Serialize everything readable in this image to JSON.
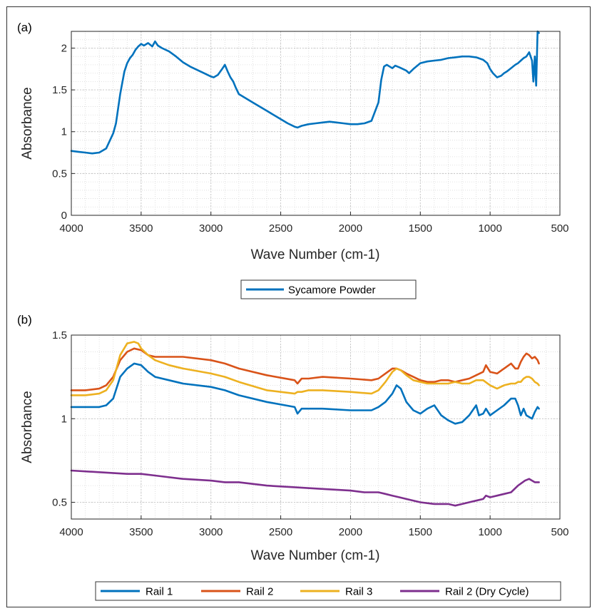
{
  "chart_data": [
    {
      "type": "line",
      "panel_label": "(a)",
      "xlabel": "Wave Number (cm-1)",
      "ylabel": "Absorbance",
      "xlim": [
        4000,
        500
      ],
      "x_reversed": true,
      "ylim": [
        0,
        2.2
      ],
      "xticks": [
        "4000",
        "3500",
        "3000",
        "2500",
        "2000",
        "1500",
        "1000",
        "500"
      ],
      "xtick_values": [
        4000,
        3500,
        3000,
        2500,
        2000,
        1500,
        1000,
        500
      ],
      "yticks": [
        "0",
        "0.5",
        "1",
        "1.5",
        "2"
      ],
      "ytick_values": [
        0,
        0.5,
        1,
        1.5,
        2
      ],
      "grid": true,
      "legend_position": "bottom-center, outside",
      "series": [
        {
          "name": "Sycamore Powder",
          "color": "#0072BD",
          "x": [
            4000,
            3950,
            3900,
            3850,
            3800,
            3750,
            3700,
            3680,
            3650,
            3620,
            3600,
            3580,
            3560,
            3540,
            3520,
            3500,
            3480,
            3450,
            3420,
            3400,
            3380,
            3350,
            3300,
            3250,
            3200,
            3150,
            3100,
            3050,
            3000,
            2980,
            2950,
            2920,
            2900,
            2880,
            2860,
            2840,
            2820,
            2800,
            2700,
            2600,
            2500,
            2450,
            2400,
            2380,
            2350,
            2300,
            2250,
            2200,
            2150,
            2100,
            2050,
            2000,
            1950,
            1900,
            1850,
            1800,
            1780,
            1760,
            1740,
            1720,
            1700,
            1680,
            1650,
            1600,
            1580,
            1550,
            1500,
            1450,
            1400,
            1350,
            1300,
            1250,
            1200,
            1150,
            1100,
            1050,
            1020,
            1000,
            980,
            950,
            920,
            900,
            880,
            850,
            820,
            800,
            780,
            760,
            740,
            720,
            700,
            690,
            680,
            670,
            660,
            650
          ],
          "y": [
            0.77,
            0.76,
            0.75,
            0.74,
            0.75,
            0.8,
            0.98,
            1.1,
            1.45,
            1.72,
            1.82,
            1.88,
            1.92,
            1.98,
            2.02,
            2.05,
            2.03,
            2.06,
            2.02,
            2.08,
            2.03,
            2.0,
            1.96,
            1.9,
            1.83,
            1.78,
            1.74,
            1.7,
            1.66,
            1.65,
            1.68,
            1.75,
            1.8,
            1.72,
            1.65,
            1.6,
            1.52,
            1.45,
            1.35,
            1.25,
            1.15,
            1.1,
            1.06,
            1.05,
            1.07,
            1.09,
            1.1,
            1.11,
            1.12,
            1.11,
            1.1,
            1.09,
            1.09,
            1.1,
            1.13,
            1.35,
            1.62,
            1.78,
            1.8,
            1.78,
            1.76,
            1.79,
            1.77,
            1.73,
            1.7,
            1.75,
            1.82,
            1.84,
            1.85,
            1.86,
            1.88,
            1.89,
            1.9,
            1.9,
            1.89,
            1.86,
            1.82,
            1.75,
            1.7,
            1.65,
            1.67,
            1.7,
            1.72,
            1.76,
            1.8,
            1.82,
            1.85,
            1.88,
            1.9,
            1.95,
            1.85,
            1.6,
            1.9,
            1.55,
            2.2,
            2.18
          ]
        }
      ]
    },
    {
      "type": "line",
      "panel_label": "(b)",
      "xlabel": "Wave Number (cm-1)",
      "ylabel": "Absorbance",
      "xlim": [
        4000,
        500
      ],
      "x_reversed": true,
      "ylim": [
        0.4,
        1.5
      ],
      "xticks": [
        "4000",
        "3500",
        "3000",
        "2500",
        "2000",
        "1500",
        "1000",
        "500"
      ],
      "xtick_values": [
        4000,
        3500,
        3000,
        2500,
        2000,
        1500,
        1000,
        500
      ],
      "yticks": [
        "0.5",
        "1",
        "1.5"
      ],
      "ytick_values": [
        0.5,
        1,
        1.5
      ],
      "grid": true,
      "legend_position": "bottom-center, outside, horizontal",
      "series": [
        {
          "name": "Rail 1",
          "color": "#0072BD",
          "x": [
            4000,
            3900,
            3800,
            3750,
            3700,
            3650,
            3600,
            3550,
            3500,
            3450,
            3400,
            3300,
            3200,
            3000,
            2900,
            2800,
            2600,
            2400,
            2380,
            2350,
            2300,
            2200,
            2000,
            1850,
            1800,
            1750,
            1700,
            1670,
            1640,
            1600,
            1550,
            1500,
            1450,
            1400,
            1350,
            1300,
            1250,
            1200,
            1150,
            1100,
            1080,
            1050,
            1030,
            1000,
            950,
            900,
            850,
            820,
            800,
            780,
            760,
            740,
            720,
            700,
            680,
            660,
            650
          ],
          "y": [
            1.07,
            1.07,
            1.07,
            1.08,
            1.12,
            1.25,
            1.3,
            1.33,
            1.32,
            1.28,
            1.25,
            1.23,
            1.21,
            1.19,
            1.17,
            1.14,
            1.1,
            1.07,
            1.03,
            1.06,
            1.06,
            1.06,
            1.05,
            1.05,
            1.07,
            1.1,
            1.15,
            1.2,
            1.18,
            1.1,
            1.05,
            1.03,
            1.06,
            1.08,
            1.02,
            0.99,
            0.97,
            0.98,
            1.02,
            1.08,
            1.02,
            1.03,
            1.06,
            1.02,
            1.05,
            1.08,
            1.12,
            1.12,
            1.08,
            1.02,
            1.06,
            1.02,
            1.01,
            1.0,
            1.04,
            1.07,
            1.06
          ]
        },
        {
          "name": "Rail 2",
          "color": "#D95319",
          "x": [
            4000,
            3900,
            3800,
            3750,
            3700,
            3650,
            3600,
            3550,
            3500,
            3450,
            3400,
            3300,
            3200,
            3000,
            2900,
            2800,
            2600,
            2400,
            2380,
            2350,
            2300,
            2200,
            2000,
            1850,
            1800,
            1750,
            1700,
            1670,
            1640,
            1600,
            1550,
            1500,
            1450,
            1400,
            1350,
            1300,
            1250,
            1200,
            1150,
            1100,
            1050,
            1030,
            1000,
            950,
            900,
            850,
            820,
            800,
            780,
            760,
            740,
            720,
            700,
            680,
            660,
            650
          ],
          "y": [
            1.17,
            1.17,
            1.18,
            1.2,
            1.25,
            1.35,
            1.4,
            1.42,
            1.41,
            1.38,
            1.37,
            1.37,
            1.37,
            1.35,
            1.33,
            1.3,
            1.26,
            1.23,
            1.21,
            1.24,
            1.24,
            1.25,
            1.24,
            1.23,
            1.24,
            1.27,
            1.3,
            1.3,
            1.29,
            1.27,
            1.25,
            1.23,
            1.22,
            1.22,
            1.23,
            1.23,
            1.22,
            1.23,
            1.24,
            1.26,
            1.28,
            1.32,
            1.28,
            1.27,
            1.3,
            1.33,
            1.3,
            1.3,
            1.34,
            1.37,
            1.39,
            1.38,
            1.36,
            1.37,
            1.35,
            1.33
          ]
        },
        {
          "name": "Rail 3",
          "color": "#EDB120",
          "x": [
            4000,
            3900,
            3800,
            3750,
            3700,
            3650,
            3600,
            3550,
            3520,
            3500,
            3450,
            3400,
            3300,
            3200,
            3000,
            2900,
            2800,
            2600,
            2400,
            2380,
            2350,
            2300,
            2200,
            2000,
            1850,
            1800,
            1750,
            1700,
            1670,
            1640,
            1600,
            1550,
            1500,
            1450,
            1400,
            1350,
            1300,
            1250,
            1200,
            1150,
            1100,
            1050,
            1000,
            950,
            900,
            850,
            820,
            800,
            780,
            760,
            740,
            720,
            700,
            680,
            660,
            650
          ],
          "y": [
            1.14,
            1.14,
            1.15,
            1.17,
            1.23,
            1.38,
            1.45,
            1.46,
            1.45,
            1.42,
            1.38,
            1.35,
            1.32,
            1.3,
            1.27,
            1.25,
            1.22,
            1.17,
            1.15,
            1.16,
            1.16,
            1.17,
            1.17,
            1.16,
            1.15,
            1.17,
            1.22,
            1.28,
            1.3,
            1.29,
            1.26,
            1.23,
            1.22,
            1.21,
            1.21,
            1.21,
            1.21,
            1.22,
            1.21,
            1.21,
            1.23,
            1.23,
            1.2,
            1.18,
            1.2,
            1.21,
            1.21,
            1.22,
            1.22,
            1.24,
            1.25,
            1.25,
            1.24,
            1.22,
            1.21,
            1.2
          ]
        },
        {
          "name": "Rail 2 (Dry Cycle)",
          "color": "#7E2F8E",
          "x": [
            4000,
            3800,
            3600,
            3500,
            3400,
            3200,
            3000,
            2900,
            2800,
            2600,
            2400,
            2200,
            2000,
            1900,
            1800,
            1750,
            1700,
            1650,
            1600,
            1500,
            1400,
            1300,
            1250,
            1200,
            1150,
            1100,
            1050,
            1030,
            1000,
            950,
            900,
            850,
            800,
            750,
            720,
            700,
            680,
            660,
            650
          ],
          "y": [
            0.69,
            0.68,
            0.67,
            0.67,
            0.66,
            0.64,
            0.63,
            0.62,
            0.62,
            0.6,
            0.59,
            0.58,
            0.57,
            0.56,
            0.56,
            0.55,
            0.54,
            0.53,
            0.52,
            0.5,
            0.49,
            0.49,
            0.48,
            0.49,
            0.5,
            0.51,
            0.52,
            0.54,
            0.53,
            0.54,
            0.55,
            0.56,
            0.6,
            0.63,
            0.64,
            0.63,
            0.62,
            0.62,
            0.62
          ]
        }
      ]
    }
  ]
}
